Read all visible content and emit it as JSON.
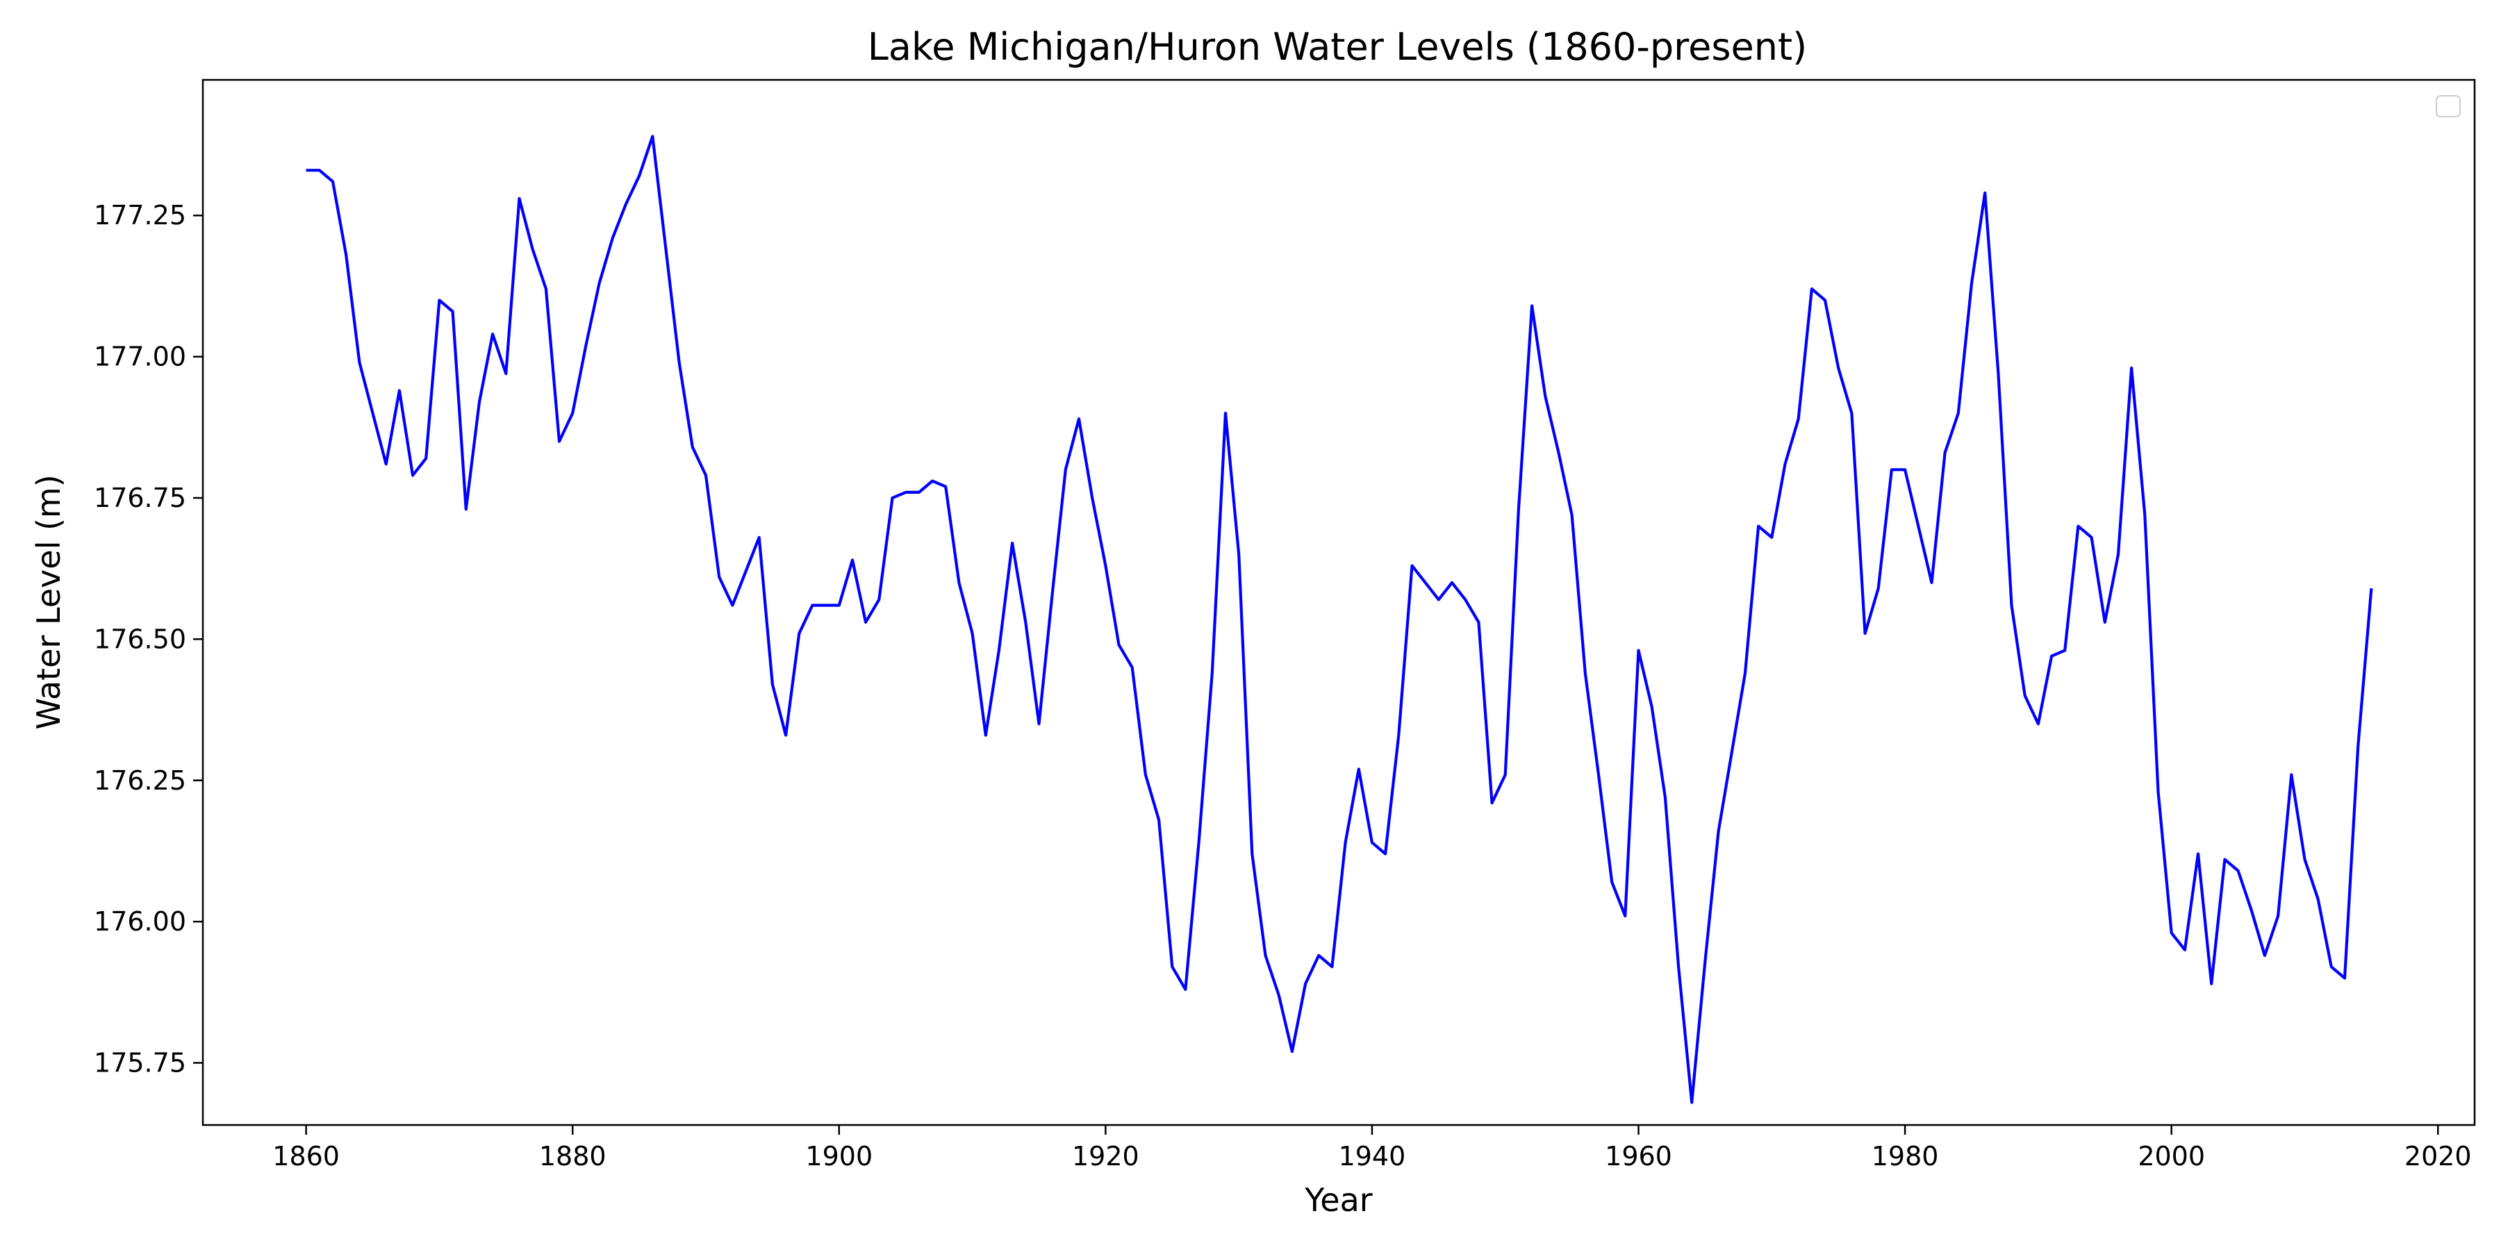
{
  "chart_data": {
    "type": "line",
    "title": "Lake Michigan/Huron Water Levels (1860-present)",
    "xlabel": "Year",
    "ylabel": "Water Level (m)",
    "xlim": [
      1852.25,
      2022.75
    ],
    "ylim": [
      175.64,
      177.49
    ],
    "x_ticks": [
      1860,
      1880,
      1900,
      1920,
      1940,
      1960,
      1980,
      2000,
      2020
    ],
    "y_ticks": [
      175.75,
      176.0,
      176.25,
      176.5,
      176.75,
      177.0,
      177.25
    ],
    "x_tick_labels": [
      "1860",
      "1880",
      "1900",
      "1920",
      "1940",
      "1960",
      "1980",
      "2000",
      "2020"
    ],
    "y_tick_labels": [
      "175.75",
      "176.00",
      "176.25",
      "176.50",
      "176.75",
      "177.00",
      "177.25"
    ],
    "grid": false,
    "legend": {
      "position": "top-right",
      "entries": []
    },
    "colors": {
      "line": "#0000ff",
      "axes": "#000000",
      "background": "#ffffff"
    },
    "series": [
      {
        "x": [
          1860,
          1861,
          1862,
          1863,
          1864,
          1865,
          1866,
          1867,
          1868,
          1869,
          1870,
          1871,
          1872,
          1873,
          1874,
          1875,
          1876,
          1877,
          1878,
          1879,
          1880,
          1881,
          1882,
          1883,
          1884,
          1885,
          1886,
          1887,
          1888,
          1889,
          1890,
          1891,
          1892,
          1893,
          1894,
          1895,
          1896,
          1897,
          1898,
          1899,
          1900,
          1901,
          1902,
          1903,
          1904,
          1905,
          1906,
          1907,
          1908,
          1909,
          1910,
          1911,
          1912,
          1913,
          1914,
          1915,
          1916,
          1917,
          1918,
          1919,
          1920,
          1921,
          1922,
          1923,
          1924,
          1925,
          1926,
          1927,
          1928,
          1929,
          1930,
          1931,
          1932,
          1933,
          1934,
          1935,
          1936,
          1937,
          1938,
          1939,
          1940,
          1941,
          1942,
          1943,
          1944,
          1945,
          1946,
          1947,
          1948,
          1949,
          1950,
          1951,
          1952,
          1953,
          1954,
          1955,
          1956,
          1957,
          1958,
          1959,
          1960,
          1961,
          1962,
          1963,
          1964,
          1965,
          1966,
          1967,
          1968,
          1969,
          1970,
          1971,
          1972,
          1973,
          1974,
          1975,
          1976,
          1977,
          1978,
          1979,
          1980,
          1981,
          1982,
          1983,
          1984,
          1985,
          1986,
          1987,
          1988,
          1989,
          1990,
          1991,
          1992,
          1993,
          1994,
          1995,
          1996,
          1997,
          1998,
          1999,
          2000,
          2001,
          2002,
          2003,
          2004,
          2005,
          2006,
          2007,
          2008,
          2009,
          2010,
          2011,
          2012,
          2013,
          2014,
          2015
        ],
        "values": [
          177.33,
          177.33,
          177.31,
          177.18,
          176.99,
          176.9,
          176.81,
          176.94,
          176.79,
          176.82,
          177.1,
          177.08,
          176.73,
          176.92,
          177.04,
          176.97,
          177.28,
          177.19,
          177.12,
          176.85,
          176.9,
          177.02,
          177.13,
          177.21,
          177.27,
          177.32,
          177.39,
          177.19,
          176.99,
          176.84,
          176.79,
          176.61,
          176.56,
          176.62,
          176.68,
          176.42,
          176.33,
          176.51,
          176.56,
          176.56,
          176.56,
          176.64,
          176.53,
          176.57,
          176.75,
          176.76,
          176.76,
          176.78,
          176.77,
          176.6,
          176.51,
          176.33,
          176.48,
          176.67,
          176.53,
          176.35,
          176.58,
          176.8,
          176.89,
          176.75,
          176.63,
          176.49,
          176.45,
          176.26,
          176.18,
          175.92,
          175.88,
          176.14,
          176.44,
          176.9,
          176.65,
          176.12,
          175.94,
          175.87,
          175.77,
          175.89,
          175.94,
          175.92,
          176.14,
          176.27,
          176.14,
          176.12,
          176.33,
          176.63,
          176.6,
          176.57,
          176.6,
          176.57,
          176.53,
          176.21,
          176.26,
          176.73,
          177.09,
          176.93,
          176.83,
          176.72,
          176.44,
          176.26,
          176.07,
          176.01,
          176.48,
          176.38,
          176.22,
          175.92,
          175.68,
          175.93,
          176.16,
          176.3,
          176.44,
          176.7,
          176.68,
          176.81,
          176.89,
          177.12,
          177.1,
          176.98,
          176.9,
          176.51,
          176.59,
          176.8,
          176.8,
          176.7,
          176.6,
          176.83,
          176.9,
          177.13,
          177.29,
          176.97,
          176.56,
          176.4,
          176.35,
          176.47,
          176.48,
          176.7,
          176.68,
          176.53,
          176.65,
          176.98,
          176.72,
          176.23,
          175.98,
          175.95,
          176.12,
          175.89,
          176.11,
          176.09,
          176.02,
          175.94,
          176.01,
          176.26,
          176.11,
          176.04,
          175.92,
          175.9,
          176.31,
          176.59
        ]
      }
    ]
  }
}
